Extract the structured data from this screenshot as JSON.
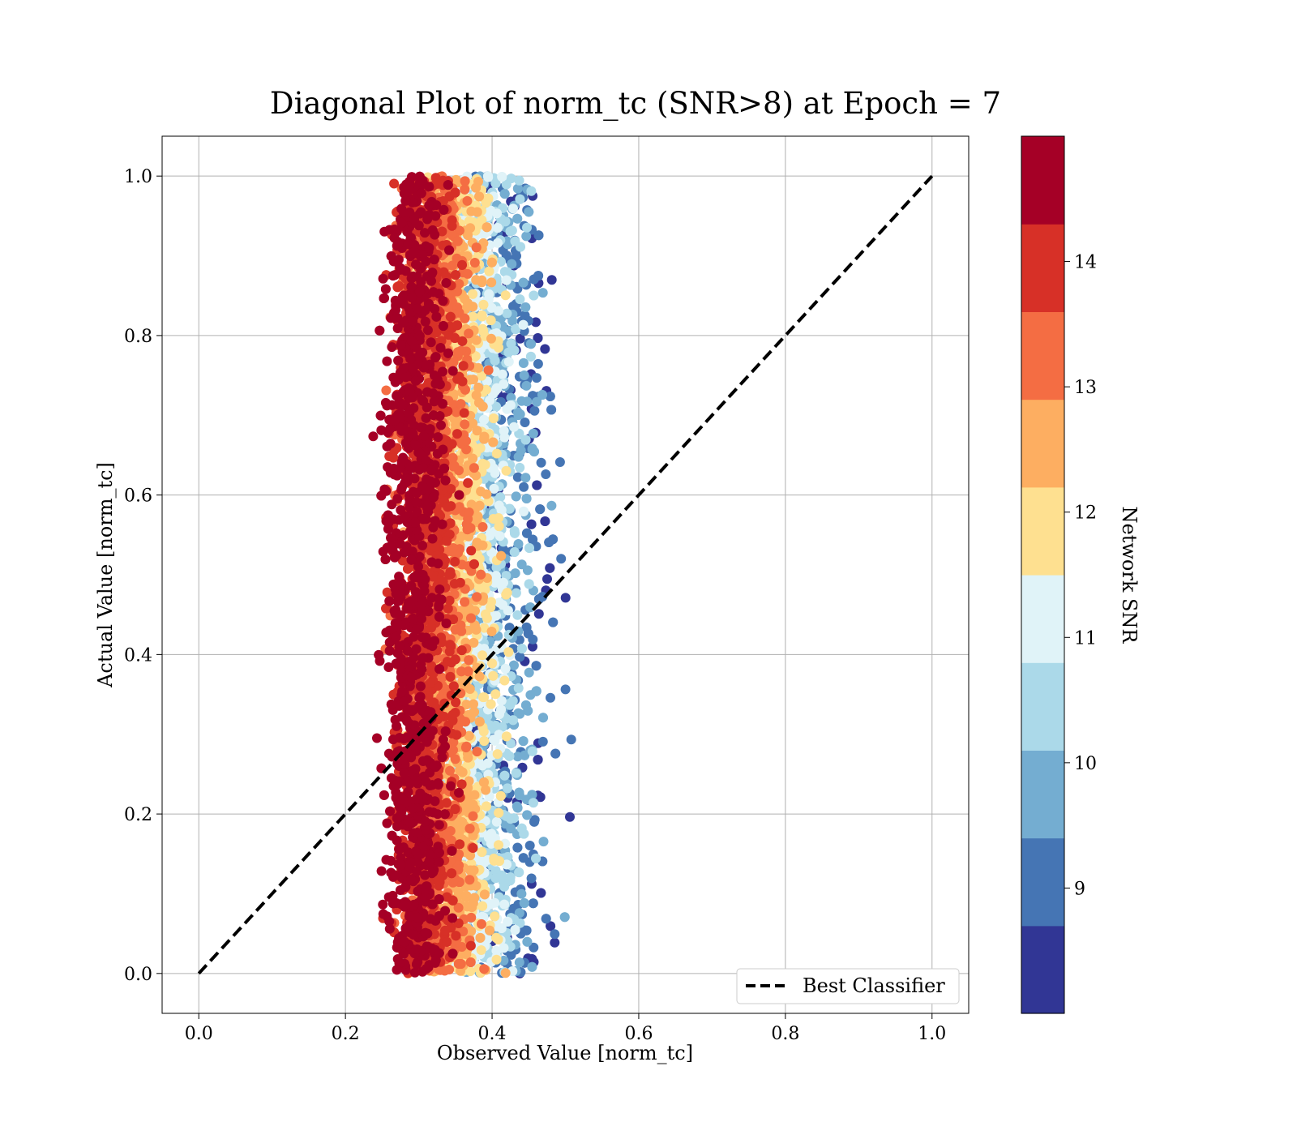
{
  "chart_data": {
    "type": "scatter",
    "title": "Diagonal Plot of norm_tc (SNR>8) at Epoch = 7",
    "xlabel": "Observed Value [norm_tc]",
    "ylabel": "Actual Value [norm_tc]",
    "xlim": [
      -0.05,
      1.05
    ],
    "ylim": [
      -0.05,
      1.05
    ],
    "xticks": [
      "0.0",
      "0.2",
      "0.4",
      "0.6",
      "0.8",
      "1.0"
    ],
    "yticks": [
      "0.0",
      "0.2",
      "0.4",
      "0.6",
      "0.8",
      "1.0"
    ],
    "grid": true,
    "legend": {
      "location": "lower-right",
      "entries": [
        "Best Classifier"
      ]
    },
    "reference_line": {
      "name": "Best Classifier",
      "style": "dashed",
      "color": "#000000",
      "x": [
        0,
        1
      ],
      "y": [
        0,
        1
      ]
    },
    "colorbar": {
      "label": "Network SNR",
      "range": [
        8,
        15
      ],
      "ticks": [
        "9",
        "10",
        "11",
        "12",
        "13",
        "14"
      ],
      "tick_values": [
        9,
        10,
        11,
        12,
        13,
        14
      ],
      "colors": [
        "#313695",
        "#4575b4",
        "#74add1",
        "#abd9e9",
        "#e0f3f8",
        "#fee090",
        "#fdae61",
        "#f46d43",
        "#d73027",
        "#a50026"
      ]
    },
    "scatter_distribution": {
      "x_range": [
        0.22,
        0.52
      ],
      "y_range": [
        0.0,
        1.0
      ],
      "high_snr_band_x": [
        0.25,
        0.35
      ],
      "low_snr_band_x": [
        0.38,
        0.5
      ]
    }
  }
}
